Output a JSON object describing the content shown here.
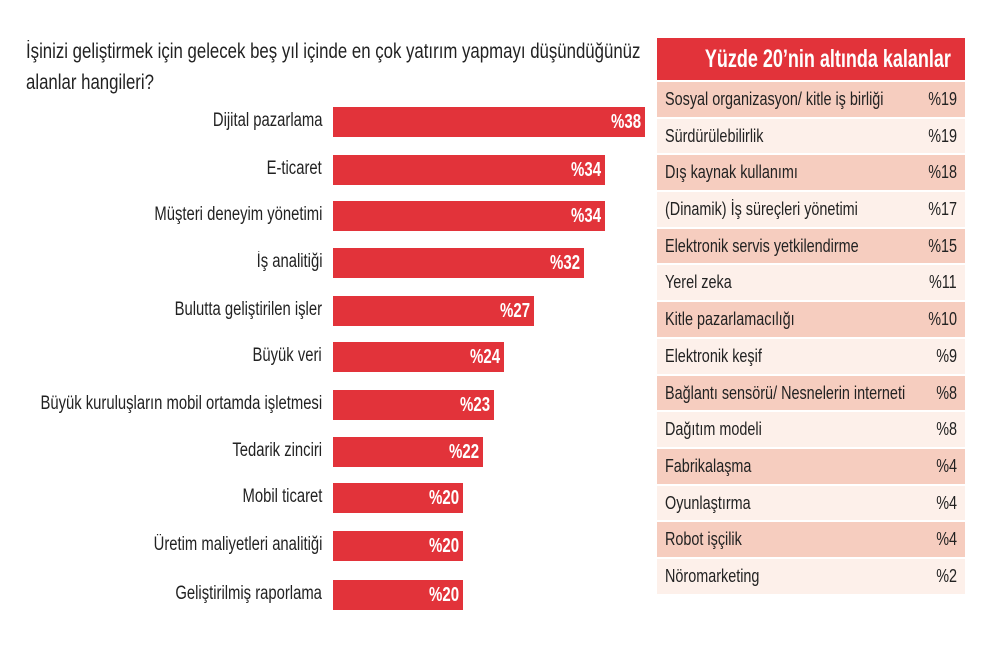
{
  "chart_data": {
    "type": "bar",
    "orientation": "horizontal",
    "title": "İşinizi geliştirmek için gelecek beş yıl içinde en çok yatırım yapmayı düşündüğünüz alanlar hangileri?",
    "categories": [
      "Dijital pazarlama",
      "E-ticaret",
      "Müşteri deneyim yönetimi",
      "İş analitiği",
      "Bulutta geliştirilen işler",
      "Büyük veri",
      "Büyük kuruluşların mobil ortamda işletmesi",
      "Tedarik zinciri",
      "Mobil ticaret",
      "Üretim maliyetleri analitiği",
      "Geliştirilmiş raporlama"
    ],
    "values": [
      38,
      34,
      34,
      32,
      27,
      24,
      23,
      22,
      20,
      20,
      20
    ],
    "labels": [
      "%38",
      "%34",
      "%34",
      "%32",
      "%27",
      "%24",
      "%23",
      "%22",
      "%20",
      "%20",
      "%20"
    ],
    "bar_color": "#e2333a"
  },
  "panel": {
    "title": "Yüzde 20’nin altında kalanlar",
    "rows": [
      {
        "name": "Sosyal organizasyon/ kitle iş birliği",
        "value": "%19"
      },
      {
        "name": "Sürdürülebilirlik",
        "value": "%19"
      },
      {
        "name": "Dış kaynak kullanımı",
        "value": "%18"
      },
      {
        "name": "(Dinamik) İş süreçleri yönetimi",
        "value": "%17"
      },
      {
        "name": "Elektronik servis yetkilendirme",
        "value": "%15"
      },
      {
        "name": "Yerel zeka",
        "value": "%11"
      },
      {
        "name": "Kitle pazarlamacılığı",
        "value": "%10"
      },
      {
        "name": "Elektronik keşif",
        "value": "%9"
      },
      {
        "name": "Bağlantı sensörü/ Nesnelerin interneti",
        "value": "%8"
      },
      {
        "name": "Dağıtım modeli",
        "value": "%8"
      },
      {
        "name": "Fabrikalaşma",
        "value": "%4"
      },
      {
        "name": "Oyunlaştırma",
        "value": "%4"
      },
      {
        "name": "Robot işçilik",
        "value": "%4"
      },
      {
        "name": "Nöromarketing",
        "value": "%2"
      }
    ],
    "colors": {
      "header": "#e2333a",
      "row_dark": "#f6cdbf",
      "row_light": "#fdf0ea"
    }
  }
}
